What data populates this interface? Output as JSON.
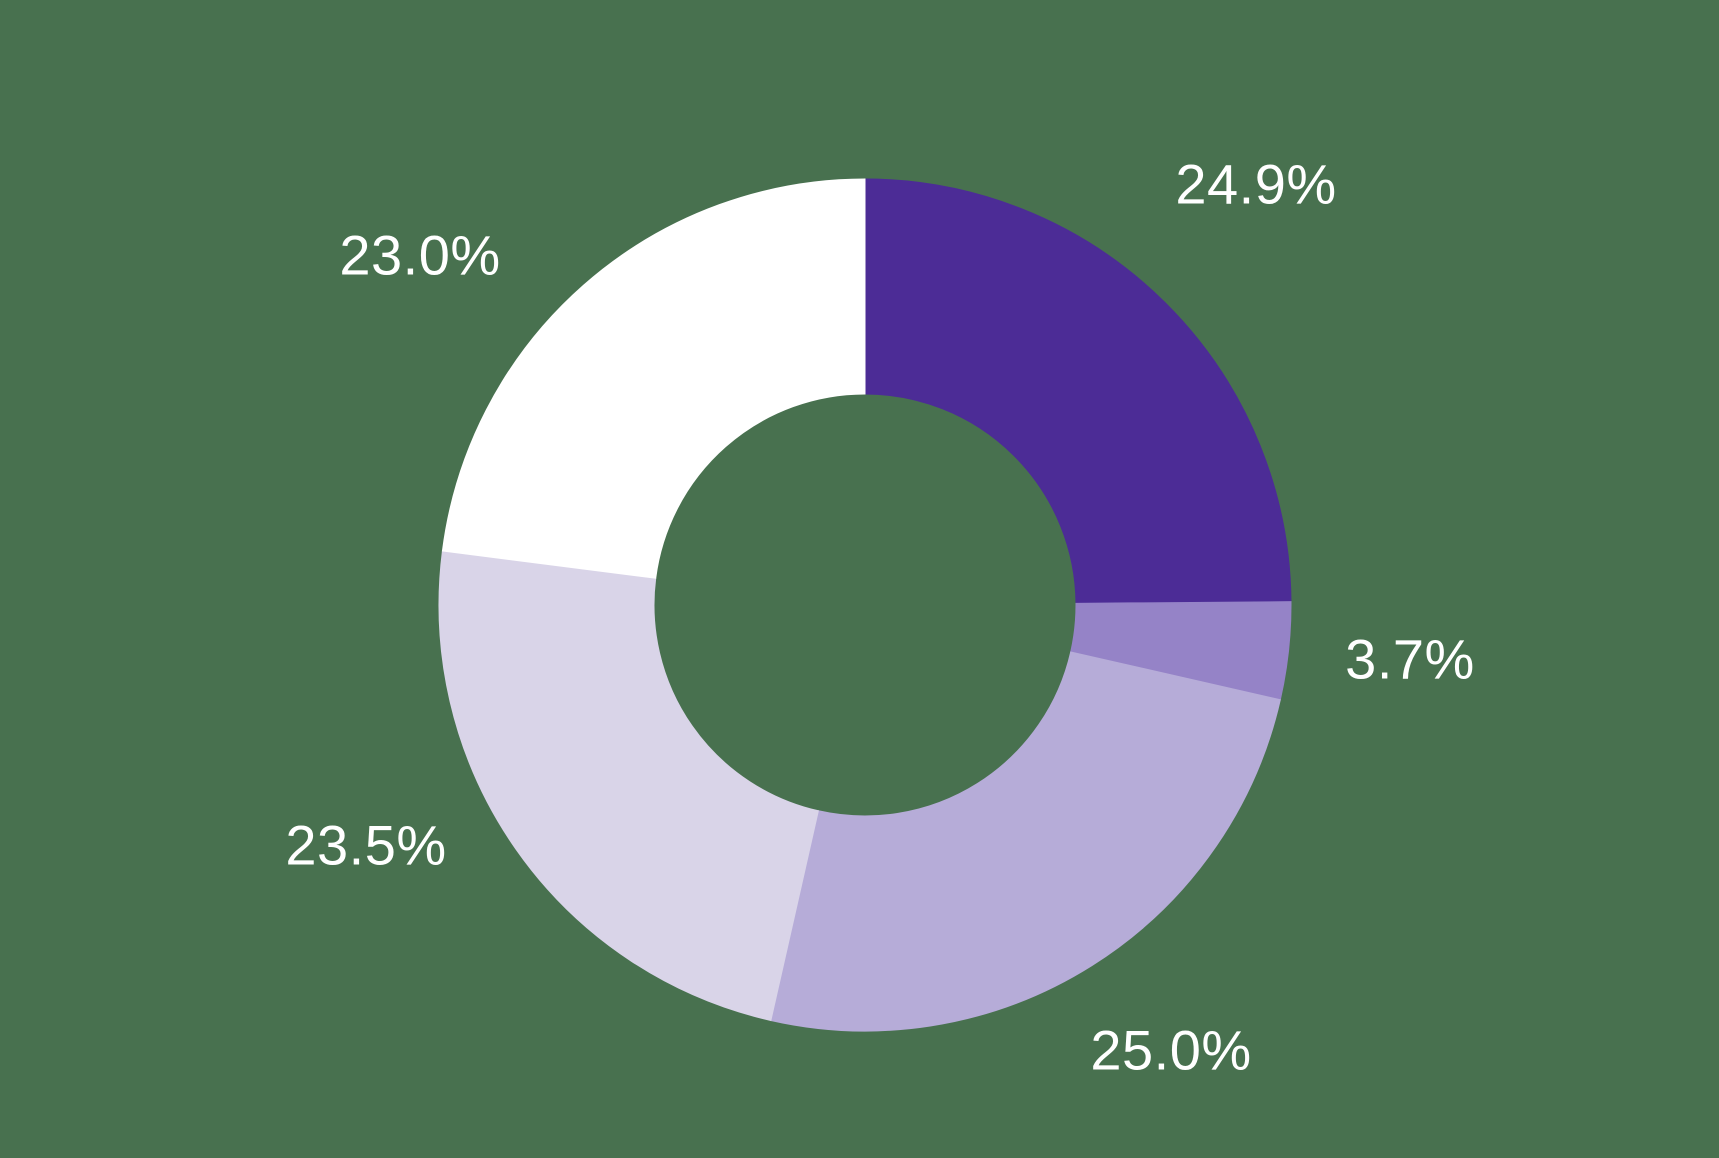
{
  "chart_data": {
    "type": "pie",
    "subtype": "donut",
    "title": "",
    "legend": "none",
    "direction": "clockwise",
    "start_angle_deg": 0,
    "donut_hole_ratio": 0.495,
    "background_color": "#48714f",
    "label_color": "#ffffff",
    "slices": [
      {
        "label": "24.9%",
        "value": 24.9,
        "color": "#4c2c96"
      },
      {
        "label": "3.7%",
        "value": 3.7,
        "color": "#9583c7"
      },
      {
        "label": "25.0%",
        "value": 25.0,
        "color": "#b6acd8"
      },
      {
        "label": "23.5%",
        "value": 23.5,
        "color": "#d9d4e8"
      },
      {
        "label": "23.0%",
        "value": 23.0,
        "color": "#ffffff"
      }
    ]
  }
}
